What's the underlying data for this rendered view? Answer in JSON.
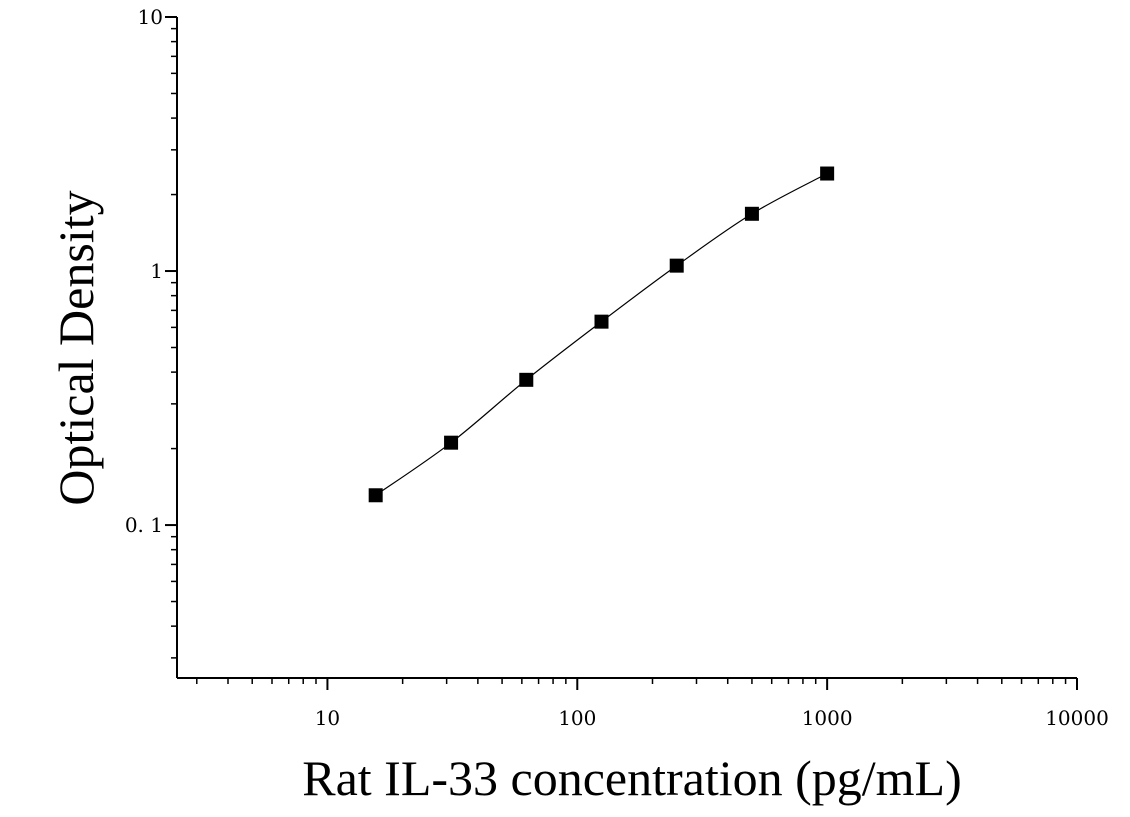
{
  "chart_data": {
    "type": "scatter",
    "title": "",
    "xlabel": "Rat IL-33 concentration (pg/mL)",
    "ylabel": "Optical Density",
    "x_scale": "log",
    "y_scale": "log",
    "xlim": [
      2.5,
      10000
    ],
    "ylim": [
      0.025,
      10
    ],
    "x_ticks": [
      10,
      100,
      1000,
      10000
    ],
    "x_tick_labels": [
      "10",
      "100",
      "1000",
      "10000"
    ],
    "y_ticks": [
      0.1,
      1,
      10
    ],
    "y_tick_labels": [
      "0. 1",
      "1",
      "10"
    ],
    "grid": false,
    "legend": "none",
    "series": [
      {
        "marker": "square",
        "color": "#000000",
        "fit_line": true,
        "x": [
          15.6,
          31.25,
          62.5,
          125,
          250,
          500,
          1000
        ],
        "y": [
          0.131,
          0.211,
          0.373,
          0.632,
          1.05,
          1.68,
          2.42
        ]
      }
    ]
  }
}
